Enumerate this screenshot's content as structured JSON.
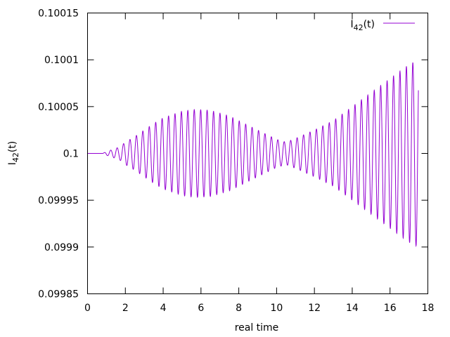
{
  "chart_data": {
    "type": "line",
    "xlabel": "real time",
    "ylabel": {
      "base": "I",
      "sub": "42",
      "rest": "(t)"
    },
    "xlim": [
      0,
      18
    ],
    "ylim": [
      0.09985,
      0.10015
    ],
    "x_ticks": [
      0,
      2,
      4,
      6,
      8,
      10,
      12,
      14,
      16,
      18
    ],
    "x_tick_labels": [
      "0",
      "2",
      "4",
      "6",
      "8",
      "10",
      "12",
      "14",
      "16",
      "18"
    ],
    "y_ticks": [
      0.09985,
      0.0999,
      0.09995,
      0.1,
      0.10005,
      0.1001,
      0.10015
    ],
    "y_tick_labels": [
      "0.09985",
      "0.0999",
      "0.09995",
      "0.1",
      "0.10005",
      "0.1001",
      "0.10015"
    ],
    "grid": false,
    "legend_position": "top-right",
    "series": [
      {
        "name": {
          "base": "I",
          "sub": "42",
          "rest": "(t)"
        },
        "color": "#9400d3",
        "baseline": 0.1,
        "t_start_oscillation": 0.8,
        "t_end": 17.5,
        "period": 0.34,
        "envelope": [
          [
            0.0,
            0.0
          ],
          [
            0.8,
            0.0
          ],
          [
            1.0,
            2e-06
          ],
          [
            1.3,
            4e-06
          ],
          [
            1.7,
            7e-06
          ],
          [
            2.0,
            1.2e-05
          ],
          [
            2.5,
            1.8e-05
          ],
          [
            3.0,
            2.5e-05
          ],
          [
            3.5,
            3.2e-05
          ],
          [
            4.0,
            3.8e-05
          ],
          [
            5.0,
            4.5e-05
          ],
          [
            5.7,
            4.7e-05
          ],
          [
            6.5,
            4.6e-05
          ],
          [
            7.5,
            4e-05
          ],
          [
            8.5,
            3e-05
          ],
          [
            9.5,
            2e-05
          ],
          [
            10.0,
            1.5e-05
          ],
          [
            10.5,
            1.2e-05
          ],
          [
            11.0,
            1.6e-05
          ],
          [
            12.0,
            2.5e-05
          ],
          [
            13.0,
            3.5e-05
          ],
          [
            14.0,
            5e-05
          ],
          [
            15.0,
            6.5e-05
          ],
          [
            16.0,
            8e-05
          ],
          [
            17.0,
            9.5e-05
          ],
          [
            17.5,
            0.0001
          ]
        ]
      }
    ]
  }
}
